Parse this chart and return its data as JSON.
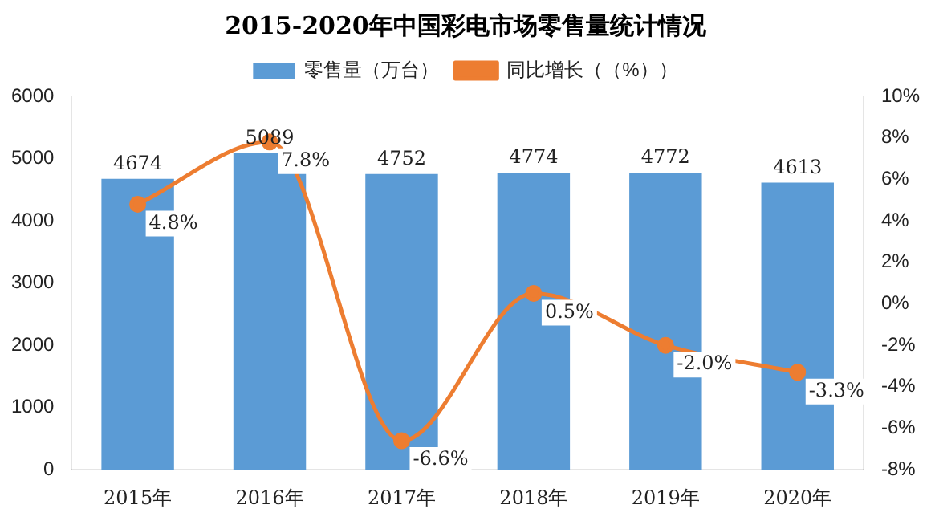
{
  "chart_data": {
    "type": "bar",
    "title": "2015-2020年中国彩电市场零售量统计情况",
    "categories": [
      "2015年",
      "2016年",
      "2017年",
      "2018年",
      "2019年",
      "2020年"
    ],
    "series": [
      {
        "name": "零售量（万台）",
        "color": "#5b9bd5",
        "values": [
          4674,
          5089,
          4752,
          4774,
          4772,
          4613
        ],
        "value_labels": [
          "4674",
          "5089",
          "4752",
          "4774",
          "4772",
          "4613"
        ]
      },
      {
        "name": "同比增长（（%））",
        "type": "line",
        "axis": "y2",
        "color": "#ed7d31",
        "values": [
          4.8,
          7.8,
          -6.6,
          0.5,
          -2.0,
          -3.3
        ],
        "value_labels": [
          "4.8%",
          "7.8%",
          "-6.6%",
          "0.5%",
          "-2.0%",
          "-3.3%"
        ]
      }
    ],
    "ylim": [
      0,
      6000
    ],
    "yticks": [
      0,
      1000,
      2000,
      3000,
      4000,
      5000,
      6000
    ],
    "y2lim": [
      -8,
      10
    ],
    "y2ticks": [
      {
        "value": -8,
        "label": "-8%"
      },
      {
        "value": -6,
        "label": "-6%"
      },
      {
        "value": -4,
        "label": "-4%"
      },
      {
        "value": -2,
        "label": "-2%"
      },
      {
        "value": 0,
        "label": "0%"
      },
      {
        "value": 2,
        "label": "2%"
      },
      {
        "value": 4,
        "label": "4%"
      },
      {
        "value": 6,
        "label": "6%"
      },
      {
        "value": 8,
        "label": "8%"
      },
      {
        "value": 10,
        "label": "10%"
      }
    ],
    "legend": "top",
    "marker": "circle"
  }
}
